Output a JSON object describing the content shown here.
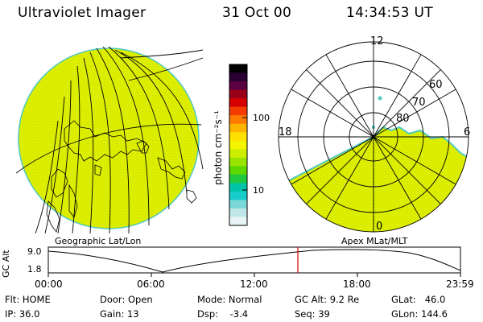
{
  "header": {
    "instrument": "Ultraviolet Imager",
    "date": "31 Oct 00",
    "time": "14:34:53 UT"
  },
  "colorbar": {
    "unit_label": "photon cm⁻²s⁻¹",
    "ticks": [
      "100",
      "10"
    ],
    "colors": [
      "#000000",
      "#2a0034",
      "#5a0040",
      "#9a0018",
      "#d40000",
      "#f53c00",
      "#ff7a00",
      "#ffb400",
      "#ffe000",
      "#f4f400",
      "#ccee00",
      "#98e400",
      "#5cd800",
      "#20c840",
      "#00c4a8",
      "#18cccc",
      "#7ad8d8",
      "#c0e8e8",
      "#e8f4f4"
    ]
  },
  "maps": {
    "geographic_label": "Geographic Lat/Lon",
    "apex_label": "Apex MLat/MLT",
    "fill_color": "#dfee00",
    "edge_color": "#4fc8c0",
    "mlt_labels": {
      "top": "12",
      "left": "18",
      "right": "6",
      "bottom": "0"
    },
    "mlat_labels": [
      "60",
      "70",
      "80"
    ]
  },
  "altitude_plot": {
    "axis_label": "GC Alt",
    "ytick_top": "9.0",
    "ytick_bottom": "1.8",
    "xticks": [
      "00:00",
      "06:00",
      "12:00",
      "18:00",
      "23:59"
    ],
    "marker_color": "#dd0000"
  },
  "footer": {
    "col1": [
      "Flt: HOME",
      "IP: 36.0"
    ],
    "col2": [
      "Door: Open",
      "Gain: 13"
    ],
    "col3": [
      "Mode: Normal",
      "Dsp:    -3.4"
    ],
    "col4": [
      "GC Alt: 9.2 Re",
      "Seq: 39"
    ],
    "col5": [
      "GLat:   46.0",
      "GLon: 144.6"
    ]
  }
}
